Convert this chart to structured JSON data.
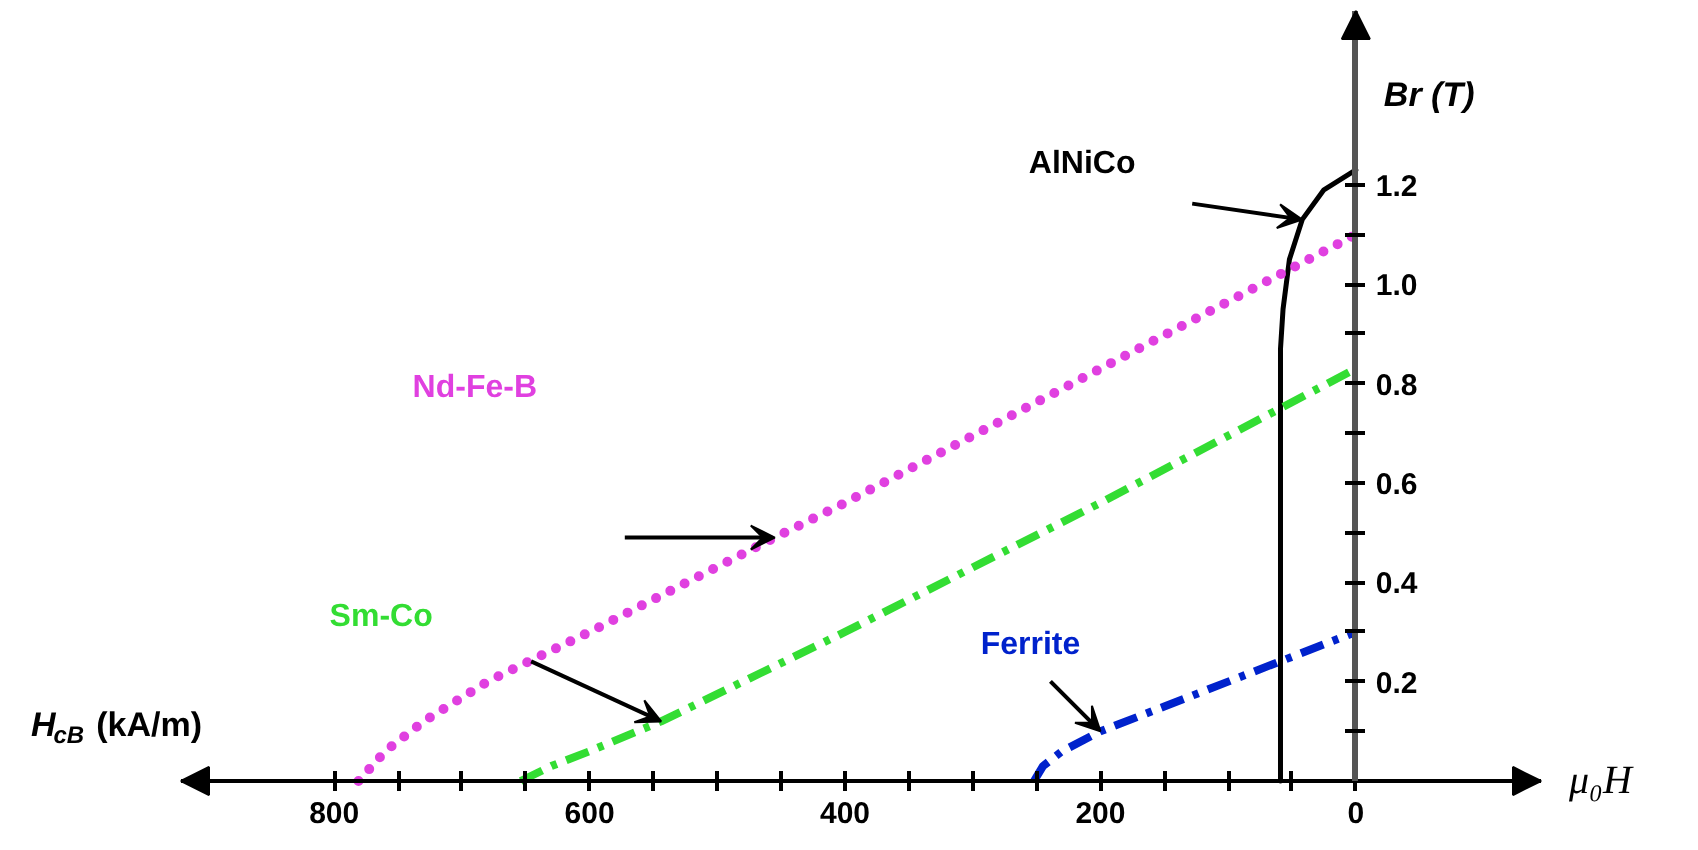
{
  "chart_data": {
    "type": "line",
    "xlabel": "μ₀H",
    "ylabel": "Br (T)",
    "annotations": [
      "H$_{cB}$ (kA/m)"
    ],
    "xlim": [
      920,
      -145
    ],
    "ylim": [
      0,
      1.55
    ],
    "xticks": [
      {
        "value": 800,
        "label": "800"
      },
      {
        "value": 750,
        "label": null
      },
      {
        "value": 700,
        "label": null
      },
      {
        "value": 650,
        "label": null
      },
      {
        "value": 600,
        "label": "600"
      },
      {
        "value": 550,
        "label": null
      },
      {
        "value": 500,
        "label": null
      },
      {
        "value": 450,
        "label": null
      },
      {
        "value": 400,
        "label": "400"
      },
      {
        "value": 350,
        "label": null
      },
      {
        "value": 300,
        "label": null
      },
      {
        "value": 250,
        "label": null
      },
      {
        "value": 200,
        "label": "200"
      },
      {
        "value": 150,
        "label": null
      },
      {
        "value": 100,
        "label": null
      },
      {
        "value": 50,
        "label": null
      },
      {
        "value": 0,
        "label": "0"
      }
    ],
    "yticks": [
      {
        "value": 0.1,
        "label": null
      },
      0.2,
      {
        "value": 0.3,
        "label": null
      },
      0.4,
      {
        "value": 0.5,
        "label": null
      },
      0.6,
      {
        "value": 0.7,
        "label": null
      },
      0.8,
      {
        "value": 0.9,
        "label": null
      },
      {
        "value": 1.0,
        "label": "1.0"
      },
      {
        "value": 1.1,
        "label": null
      },
      1.2
    ],
    "marker": "none",
    "series": [
      {
        "name": "AlNiCo",
        "color": "#000000",
        "line_style": "solid",
        "x": [
          59,
          59,
          57,
          52,
          42,
          25,
          0
        ],
        "values": [
          0,
          0.87,
          0.95,
          1.05,
          1.13,
          1.19,
          1.23
        ]
      },
      {
        "name": "Nd-Fe-B",
        "color": "#e040e0",
        "line_style": "dotted",
        "x": [
          781,
          760,
          730,
          680,
          600,
          455,
          400,
          200,
          0
        ],
        "values": [
          0,
          0.06,
          0.12,
          0.2,
          0.3,
          0.49,
          0.56,
          0.83,
          1.1
        ]
      },
      {
        "name": "Sm-Co",
        "color": "#33dd33",
        "line_style": "dashed",
        "x": [
          654,
          630,
          600,
          544,
          400,
          200,
          0
        ],
        "values": [
          0,
          0.03,
          0.06,
          0.12,
          0.3,
          0.56,
          0.83
        ]
      },
      {
        "name": "Ferrite",
        "color": "#0022cc",
        "line_style": "dashed",
        "x": [
          252,
          245,
          230,
          200,
          150,
          100,
          60,
          0
        ],
        "values": [
          0,
          0.03,
          0.06,
          0.1,
          0.15,
          0.2,
          0.24,
          0.3
        ]
      }
    ]
  }
}
